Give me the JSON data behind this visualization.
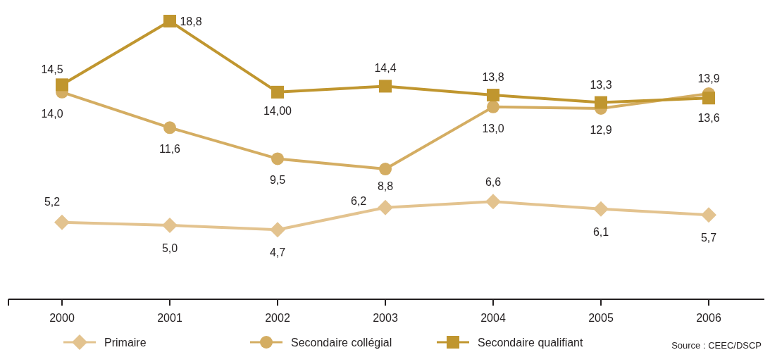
{
  "chart_data": {
    "type": "line",
    "categories": [
      "2000",
      "2001",
      "2002",
      "2003",
      "2004",
      "2005",
      "2006"
    ],
    "series": [
      {
        "name": "Primaire",
        "color": "#e3c38f",
        "marker": "diamond",
        "values": [
          5.2,
          5.0,
          4.7,
          6.2,
          6.6,
          6.1,
          5.7
        ],
        "value_labels": [
          "5,2",
          "5,0",
          "4,7",
          "6,2",
          "6,6",
          "6,1",
          "5,7"
        ]
      },
      {
        "name": "Secondaire collégial",
        "color": "#d4ad62",
        "marker": "circle",
        "values": [
          14.0,
          11.6,
          9.5,
          8.8,
          13.0,
          12.9,
          13.9
        ],
        "value_labels": [
          "14,0",
          "11,6",
          "9,5",
          "8,8",
          "13,0",
          "12,9",
          "13,9"
        ]
      },
      {
        "name": "Secondaire qualifiant",
        "color": "#c0962f",
        "marker": "square",
        "values": [
          14.5,
          18.8,
          14.0,
          14.4,
          13.8,
          13.3,
          13.6
        ],
        "value_labels": [
          "14,5",
          "18,8",
          "14,00",
          "14,4",
          "13,8",
          "13,3",
          "13,6"
        ]
      }
    ],
    "legend": "bottom",
    "annotations": [
      "Source : CEEC/DSCP"
    ]
  }
}
